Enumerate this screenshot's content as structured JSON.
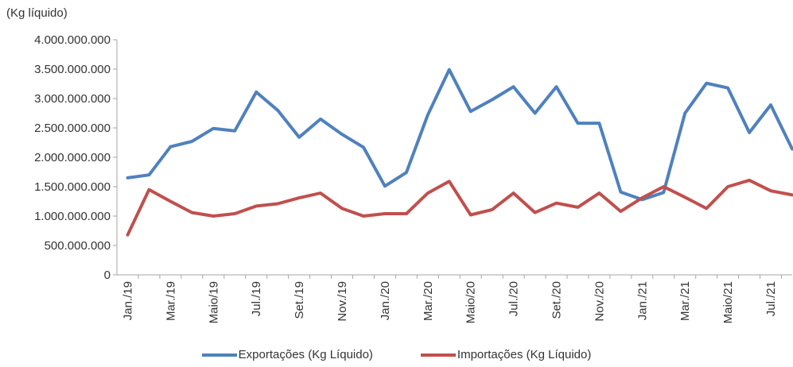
{
  "chart_data": {
    "type": "line",
    "title": "",
    "xlabel": "",
    "ylabel": "(Kg líquido)",
    "ylim": [
      0,
      4000000000
    ],
    "y_ticks": [
      0,
      500000000,
      1000000000,
      1500000000,
      2000000000,
      2500000000,
      3000000000,
      3500000000,
      4000000000
    ],
    "y_tick_labels": [
      "0",
      "500.000.000",
      "1.000.000.000",
      "1.500.000.000",
      "2.000.000.000",
      "2.500.000.000",
      "3.000.000.000",
      "3.500.000.000",
      "4.000.000.000"
    ],
    "x": [
      "Jan./19",
      "Fev./19",
      "Mar./19",
      "Abr./19",
      "Maio/19",
      "Jun./19",
      "Jul./19",
      "Ago./19",
      "Set./19",
      "Out./19",
      "Nov./19",
      "Dez./19",
      "Jan./20",
      "Fev./20",
      "Mar./20",
      "Abr./20",
      "Maio/20",
      "Jun./20",
      "Jul./20",
      "Ago./20",
      "Set./20",
      "Out./20",
      "Nov./20",
      "Dez./20",
      "Jan./21",
      "Fev./21",
      "Mar./21",
      "Abr./21",
      "Maio/21",
      "Jun./21",
      "Jul./21",
      "Ago./21"
    ],
    "x_tick_labels": [
      "Jan./19",
      "Mar./19",
      "Maio/19",
      "Jul./19",
      "Set./19",
      "Nov./19",
      "Jan./20",
      "Mar./20",
      "Maio/20",
      "Jul./20",
      "Set./20",
      "Nov./20",
      "Jan./21",
      "Mar./21",
      "Maio/21",
      "Jul./21"
    ],
    "grid": false,
    "legend_position": "bottom",
    "series": [
      {
        "name": "Exportações (Kg Líquido)",
        "color": "#4f81bd",
        "values": [
          1650000000,
          1700000000,
          2180000000,
          2270000000,
          2490000000,
          2450000000,
          3110000000,
          2800000000,
          2340000000,
          2650000000,
          2390000000,
          2170000000,
          1510000000,
          1740000000,
          2720000000,
          3490000000,
          2780000000,
          2980000000,
          3200000000,
          2750000000,
          3200000000,
          2580000000,
          2580000000,
          1410000000,
          1280000000,
          1400000000,
          2750000000,
          3260000000,
          3180000000,
          2420000000,
          2890000000,
          2140000000
        ]
      },
      {
        "name": "Importações (Kg Líquido)",
        "color": "#c0504d",
        "values": [
          680000000,
          1450000000,
          1250000000,
          1060000000,
          1000000000,
          1040000000,
          1170000000,
          1210000000,
          1310000000,
          1390000000,
          1130000000,
          1000000000,
          1040000000,
          1040000000,
          1390000000,
          1590000000,
          1020000000,
          1110000000,
          1390000000,
          1060000000,
          1220000000,
          1150000000,
          1390000000,
          1080000000,
          1310000000,
          1500000000,
          1320000000,
          1130000000,
          1500000000,
          1610000000,
          1430000000,
          1360000000
        ]
      }
    ]
  }
}
